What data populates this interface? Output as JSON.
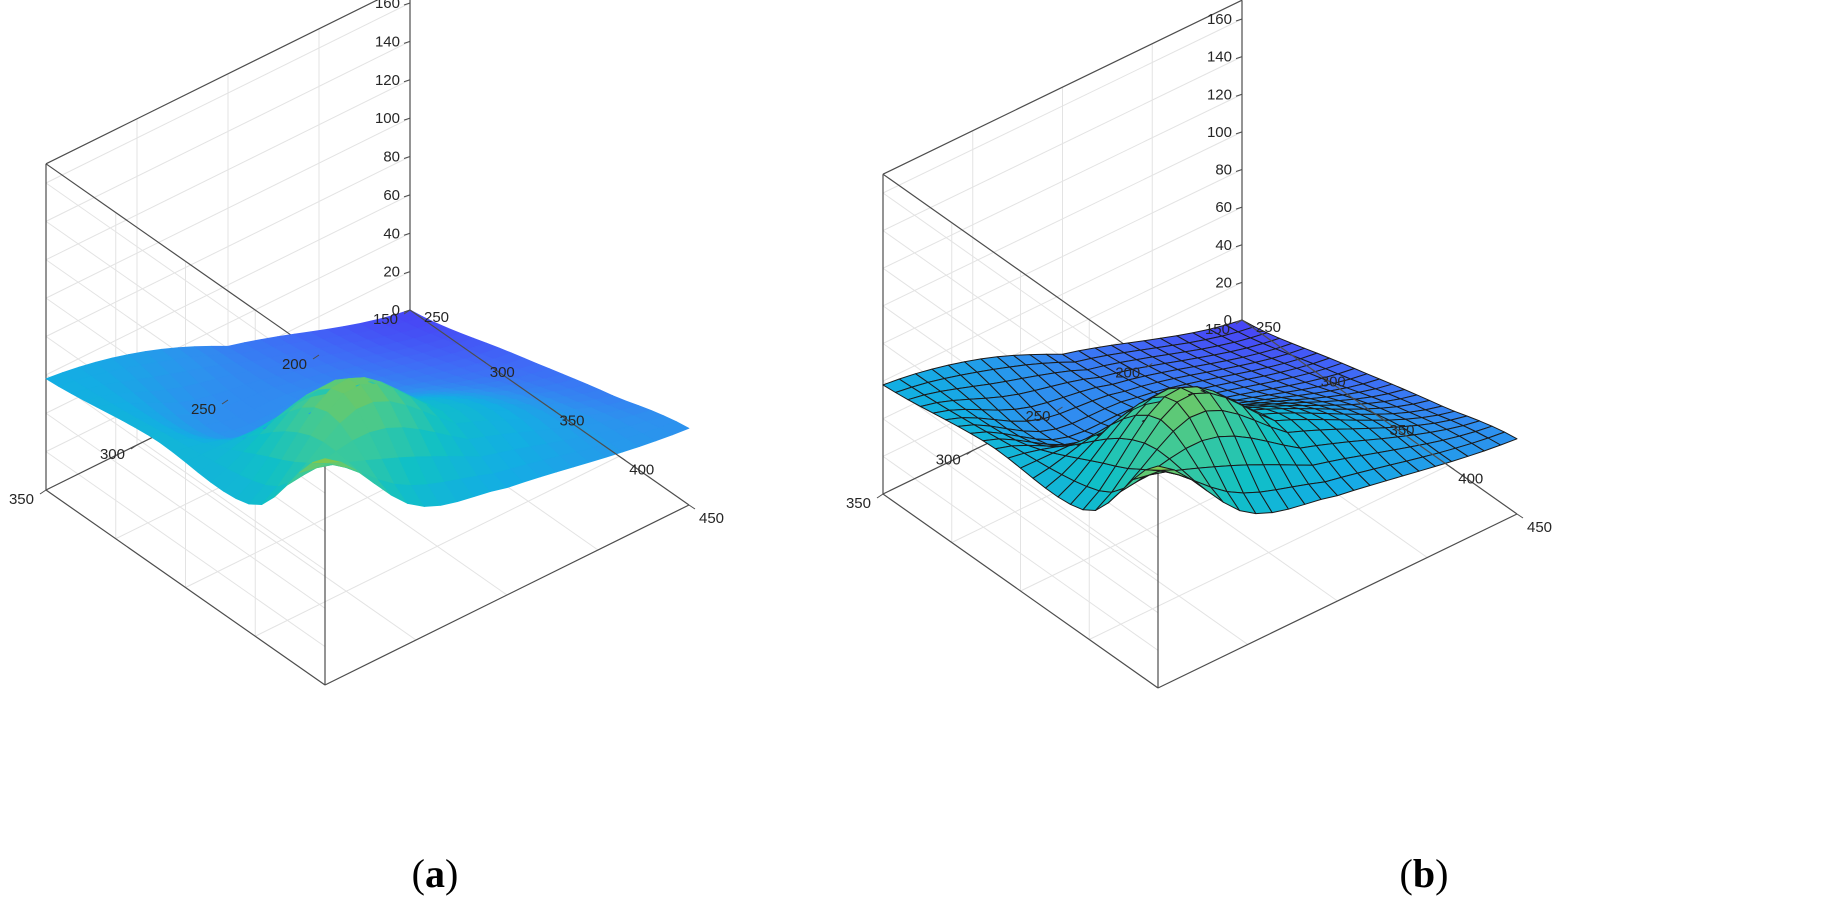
{
  "panels": [
    {
      "id": "a",
      "open": "(",
      "letter": "a",
      "close": ")"
    },
    {
      "id": "b",
      "open": "(",
      "letter": "b",
      "close": ")"
    }
  ],
  "chart_data": [
    {
      "type": "surface",
      "panel": "a",
      "mesh_lines": false,
      "colormap": [
        "#4844f5",
        "#3f6cf6",
        "#2e90ef",
        "#13aee3",
        "#10c0c6",
        "#3cc99a",
        "#8cc844"
      ],
      "x_ticks": [
        300,
        350,
        400,
        450
      ],
      "y_ticks": [
        150,
        200,
        250,
        300,
        350
      ],
      "z_ticks": [
        0,
        20,
        40,
        60,
        80,
        100,
        120,
        140,
        160
      ],
      "xlim": [
        250,
        450
      ],
      "ylim": [
        150,
        350
      ],
      "zlim": [
        0,
        170
      ],
      "x_origin_label": 250,
      "grid": true,
      "surface_grid_x": [
        250,
        325,
        400,
        450
      ],
      "surface_grid_y": [
        150,
        250,
        300,
        350
      ],
      "z_values": [
        [
          0,
          15,
          30,
          40
        ],
        [
          28,
          38,
          72,
          56
        ],
        [
          48,
          42,
          108,
          70
        ],
        [
          58,
          66,
          68,
          118
        ]
      ]
    },
    {
      "type": "surface",
      "panel": "b",
      "mesh_lines": true,
      "colormap": [
        "#4844f5",
        "#3f6cf6",
        "#2e90ef",
        "#13aee3",
        "#10c0c6",
        "#3cc99a",
        "#8cc844"
      ],
      "x_ticks": [
        300,
        350,
        400,
        450
      ],
      "y_ticks": [
        150,
        200,
        250,
        300,
        350
      ],
      "z_ticks": [
        0,
        20,
        40,
        60,
        80,
        100,
        120,
        140,
        160
      ],
      "xlim": [
        250,
        450
      ],
      "ylim": [
        150,
        350
      ],
      "zlim": [
        0,
        170
      ],
      "x_origin_label": 250,
      "grid": true,
      "surface_grid_x": [
        250,
        325,
        400,
        450
      ],
      "surface_grid_y": [
        150,
        250,
        300,
        350
      ],
      "z_values": [
        [
          0,
          15,
          30,
          40
        ],
        [
          28,
          38,
          72,
          56
        ],
        [
          48,
          42,
          108,
          70
        ],
        [
          58,
          66,
          68,
          118
        ]
      ]
    }
  ]
}
